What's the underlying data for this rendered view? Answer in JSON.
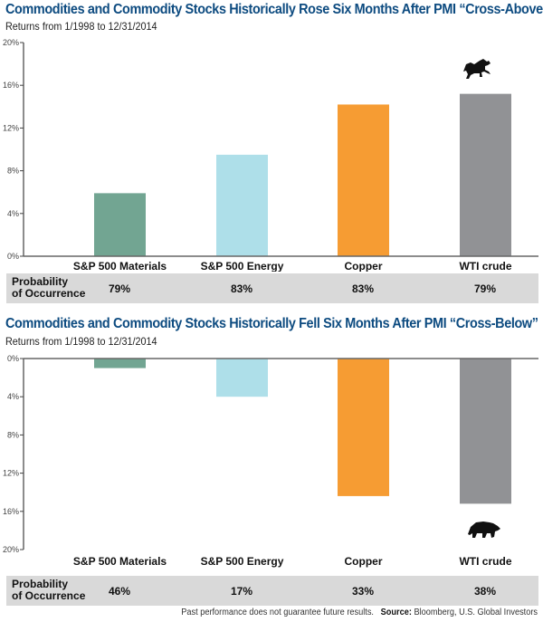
{
  "chart_data": [
    {
      "type": "bar",
      "title": "Commodities and Commodity Stocks Historically Rose Six Months After PMI “Cross-Above”",
      "subtitle": "Returns from 1/1998 to 12/31/2014",
      "xlabel": "",
      "ylabel": "",
      "categories": [
        "S&P 500 Materials",
        "S&P 500 Energy",
        "Copper",
        "WTI crude"
      ],
      "values": [
        5.9,
        9.5,
        14.2,
        15.2
      ],
      "colors": [
        "#72a592",
        "#aedfe9",
        "#f69c33",
        "#919295"
      ],
      "ylim": [
        0,
        20
      ],
      "yticks": [
        0,
        4,
        8,
        12,
        16,
        20
      ],
      "ytick_labels": [
        "0%",
        "4%",
        "8%",
        "12%",
        "16%",
        "20%"
      ],
      "grid": false,
      "icon": "bull-icon",
      "probability_label": [
        "Probability",
        "of Occurrence"
      ],
      "probability": [
        "79%",
        "83%",
        "83%",
        "79%"
      ]
    },
    {
      "type": "bar",
      "title": "Commodities and Commodity Stocks Historically Fell Six Months After PMI “Cross-Below”",
      "subtitle": "Returns from 1/1998 to 12/31/2014",
      "xlabel": "",
      "ylabel": "",
      "categories": [
        "S&P 500 Materials",
        "S&P 500 Energy",
        "Copper",
        "WTI crude"
      ],
      "values": [
        -1.0,
        -4.0,
        -14.4,
        -15.2
      ],
      "colors": [
        "#72a592",
        "#aedfe9",
        "#f69c33",
        "#919295"
      ],
      "ylim": [
        -20,
        0
      ],
      "yticks": [
        0,
        -4,
        -8,
        -12,
        -16,
        -20
      ],
      "ytick_labels": [
        "0%",
        "4%",
        "8%",
        "12%",
        "16%",
        "20%"
      ],
      "grid": false,
      "icon": "bear-icon",
      "probability_label": [
        "Probability",
        "of Occurrence"
      ],
      "probability": [
        "46%",
        "17%",
        "33%",
        "38%"
      ]
    }
  ],
  "footer": {
    "disclaimer": "Past performance does not guarantee future results.",
    "source_label": "Source:",
    "source": "Bloomberg, U.S. Global Investors"
  }
}
